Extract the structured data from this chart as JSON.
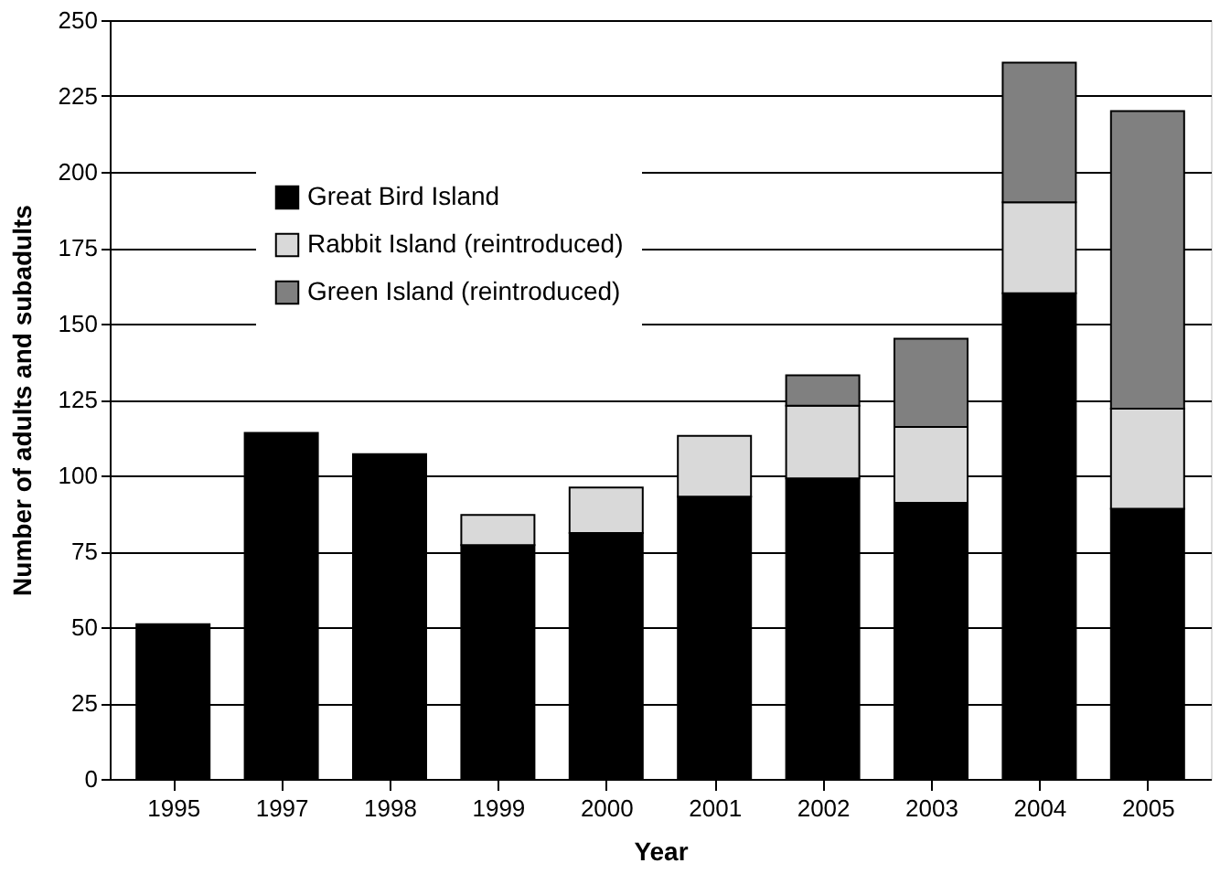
{
  "chart_data": {
    "type": "bar",
    "stacked": true,
    "xlabel": "Year",
    "ylabel": "Number of adults and subadults",
    "categories": [
      "1995",
      "1997",
      "1998",
      "1999",
      "2000",
      "2001",
      "2002",
      "2003",
      "2004",
      "2005"
    ],
    "series": [
      {
        "name": "Great Bird Island",
        "color": "#000000",
        "values": [
          51,
          114,
          107,
          77,
          81,
          93,
          99,
          91,
          160,
          89
        ]
      },
      {
        "name": "Rabbit Island (reintroduced)",
        "color": "#d9d9d9",
        "values": [
          null,
          null,
          null,
          10,
          15,
          20,
          24,
          25,
          30,
          33
        ]
      },
      {
        "name": "Green Island (reintroduced)",
        "color": "#808080",
        "values": [
          null,
          null,
          null,
          null,
          null,
          null,
          10,
          29,
          46,
          98
        ]
      }
    ],
    "ylim": [
      0,
      250
    ],
    "yticks": [
      0,
      25,
      50,
      75,
      100,
      125,
      150,
      175,
      200,
      225,
      250
    ],
    "grid": "y",
    "legend": "top left"
  }
}
